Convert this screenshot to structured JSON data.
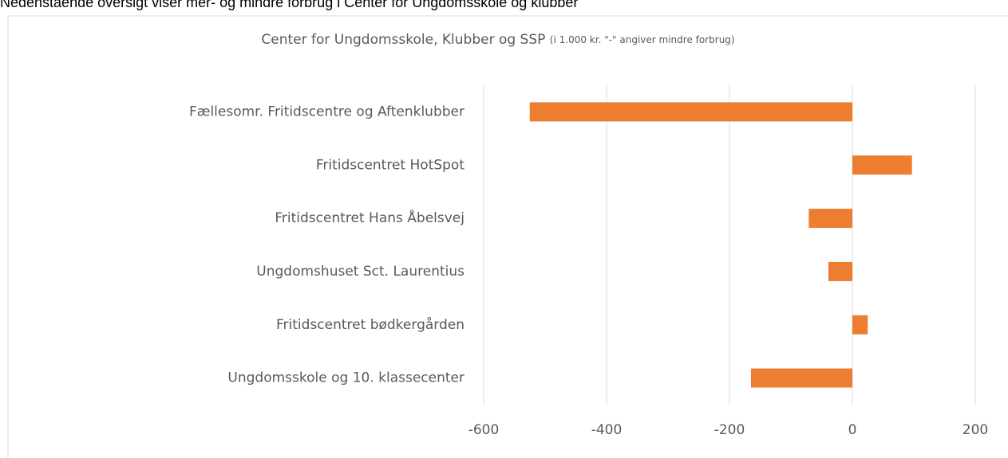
{
  "caption": "Nedenstående oversigt viser mer- og mindre forbrug i Center for Ungdomsskole og klubber",
  "chart_data": {
    "type": "bar",
    "orientation": "horizontal",
    "title": "Center for Ungdomsskole, Klubber og SSP",
    "subtitle": "(i 1.000 kr. \"-\" angiver mindre forbrug)",
    "categories": [
      "Fællesomr. Fritidscentre og Aftenklubber",
      "Fritidscentret HotSpot",
      "Fritidscentret Hans Åbelsvej",
      "Ungdomshuset Sct. Laurentius",
      "Fritidscentret bødkergården",
      "Ungdomsskole og 10. klassecenter"
    ],
    "values": [
      -525,
      97,
      -71,
      -39,
      25,
      -165
    ],
    "color": "#ed7d31",
    "xlim": [
      -600,
      200
    ],
    "xticks": [
      -600,
      -400,
      -200,
      0,
      200
    ],
    "grid": true
  }
}
